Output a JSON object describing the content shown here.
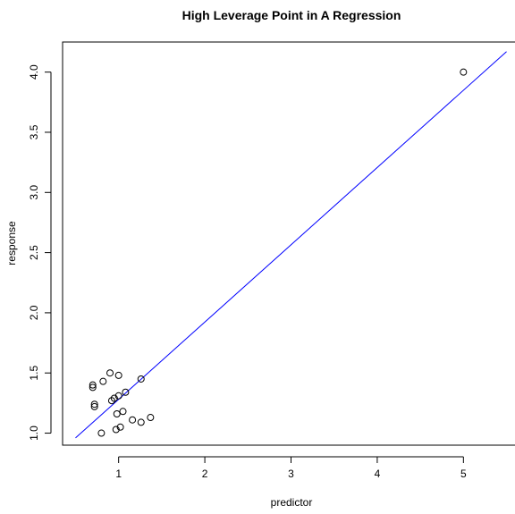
{
  "chart_data": {
    "type": "scatter",
    "title": "High Leverage Point in A Regression",
    "xlabel": "predictor",
    "ylabel": "response",
    "xlim": [
      0.35,
      5.65
    ],
    "ylim": [
      0.9,
      4.25
    ],
    "x_ticks": [
      1,
      2,
      3,
      4,
      5
    ],
    "y_ticks": [
      1.0,
      1.5,
      2.0,
      2.5,
      3.0,
      3.5,
      4.0
    ],
    "x_tick_labels": [
      "1",
      "2",
      "3",
      "4",
      "5"
    ],
    "y_tick_labels": [
      "1.0",
      "1.5",
      "2.0",
      "2.5",
      "3.0",
      "3.5",
      "4.0"
    ],
    "grid": false,
    "points": {
      "x": [
        0.7,
        0.7,
        0.72,
        0.72,
        0.82,
        0.8,
        0.9,
        0.92,
        0.95,
        1.0,
        1.08,
        1.26,
        1.0,
        0.98,
        1.05,
        1.16,
        1.26,
        1.37,
        1.02,
        0.97,
        5.0
      ],
      "y": [
        1.38,
        1.4,
        1.24,
        1.22,
        1.43,
        1.0,
        1.5,
        1.27,
        1.29,
        1.31,
        1.34,
        1.45,
        1.48,
        1.16,
        1.18,
        1.11,
        1.09,
        1.13,
        1.05,
        1.03,
        4.0
      ]
    },
    "fit_line": {
      "x": [
        0.5,
        5.5
      ],
      "y": [
        0.96,
        4.17
      ],
      "color": "#0000FF"
    },
    "point_marker": "open-circle",
    "point_color": "#000000"
  }
}
